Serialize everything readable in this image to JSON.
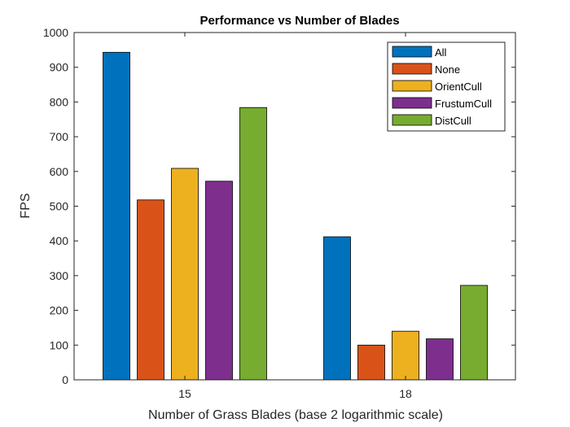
{
  "chart_data": {
    "type": "bar",
    "title": "Performance vs Number of Blades",
    "xlabel": "Number of Grass Blades (base 2 logarithmic scale)",
    "ylabel": "FPS",
    "categories": [
      "15",
      "18"
    ],
    "ylim": [
      0,
      1000
    ],
    "yticks": [
      "0",
      "100",
      "200",
      "300",
      "400",
      "500",
      "600",
      "700",
      "800",
      "900",
      "1000"
    ],
    "grid": false,
    "legend_position": "top-right",
    "series": [
      {
        "name": "All",
        "color": "#0072BD",
        "values": [
          943,
          412
        ]
      },
      {
        "name": "None",
        "color": "#D95319",
        "values": [
          518,
          100
        ]
      },
      {
        "name": "OrientCull",
        "color": "#EDB120",
        "values": [
          609,
          140
        ]
      },
      {
        "name": "FrustumCull",
        "color": "#7E2F8E",
        "values": [
          572,
          118
        ]
      },
      {
        "name": "DistCull",
        "color": "#77AC30",
        "values": [
          784,
          272
        ]
      }
    ]
  }
}
